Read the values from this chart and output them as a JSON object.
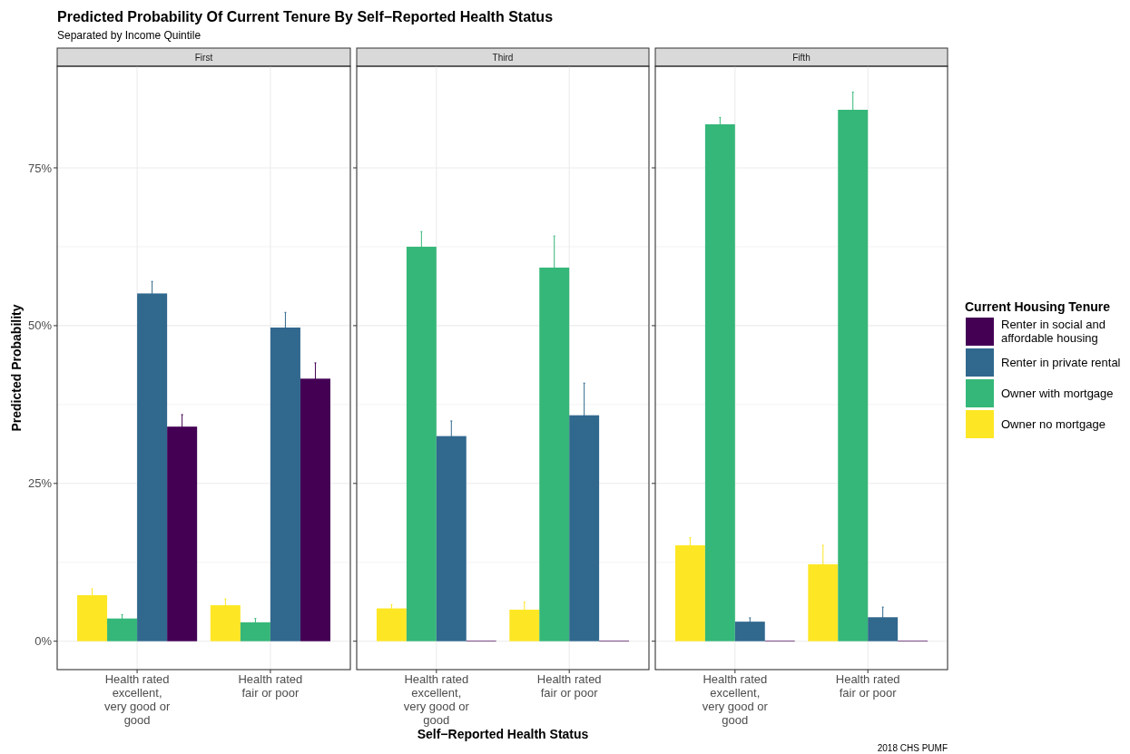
{
  "chart_data": [
    {
      "type": "bar",
      "title": "Predicted Probability Of Current Tenure By Self−Reported Health Status",
      "subtitle": "Separated by Income Quintile",
      "ylabel": "Predicted Probability",
      "annotations": [
        "First"
      ],
      "categories": [
        "Health rated excellent, very good or good",
        "Health rated fair or poor"
      ],
      "series": [
        {
          "color": "#fde725",
          "values": [
            7.3,
            5.7
          ],
          "errors": [
            1.0,
            1.0
          ]
        },
        {
          "color": "#35b779",
          "values": [
            3.6,
            3.0
          ],
          "errors": [
            0.6,
            0.6
          ]
        },
        {
          "color": "#31688e",
          "values": [
            55.1,
            49.7
          ],
          "errors": [
            1.9,
            2.4
          ]
        },
        {
          "color": "#440154",
          "values": [
            34.0,
            41.6
          ],
          "errors": [
            1.9,
            2.5
          ]
        }
      ],
      "ylim": [
        -4.5,
        91.1
      ],
      "yticks": [
        {
          "value": 0,
          "label": "0%"
        },
        {
          "value": 25,
          "label": "25%"
        },
        {
          "value": 50,
          "label": "50%"
        },
        {
          "value": 75,
          "label": "75%"
        }
      ],
      "grid": true
    },
    {
      "type": "bar",
      "xlabel": "Self−Reported Health Status",
      "annotations": [
        "Third"
      ],
      "categories": [
        "Health rated excellent, very good or good",
        "Health rated fair or poor"
      ],
      "series": [
        {
          "color": "#fde725",
          "values": [
            5.2,
            5.0
          ],
          "errors": [
            0.6,
            1.2
          ]
        },
        {
          "color": "#35b779",
          "values": [
            62.5,
            59.2
          ],
          "errors": [
            2.4,
            5.0
          ]
        },
        {
          "color": "#31688e",
          "values": [
            32.5,
            35.8
          ],
          "errors": [
            2.4,
            5.1
          ]
        },
        {
          "color": "#440154",
          "values": [
            0.1,
            0.1
          ],
          "errors": [
            null,
            null
          ]
        }
      ],
      "ylim": [
        -4.5,
        91.1
      ],
      "yticks": [
        {
          "value": 0,
          "label": null
        },
        {
          "value": 25,
          "label": null
        },
        {
          "value": 50,
          "label": null
        },
        {
          "value": 75,
          "label": null
        }
      ],
      "grid": true,
      "tick_labels": "x"
    },
    {
      "type": "bar",
      "annotations": [
        "Fifth",
        "2018 CHS PUMF"
      ],
      "legend": "right",
      "legend_title": "Current Housing Tenure",
      "categories": [
        "Health rated excellent, very good or good",
        "Health rated fair or poor"
      ],
      "series": [
        {
          "name": "Owner no mortgage",
          "color": "#fde725",
          "values": [
            15.2,
            12.2
          ],
          "errors": [
            1.2,
            3.0
          ]
        },
        {
          "name": "Owner with mortgage",
          "color": "#35b779",
          "values": [
            81.9,
            84.2
          ],
          "errors": [
            1.1,
            2.8
          ]
        },
        {
          "name": "Renter in private rental",
          "color": "#31688e",
          "values": [
            3.1,
            3.8
          ],
          "errors": [
            0.6,
            1.6
          ]
        },
        {
          "name": "Renter in social and affordable housing",
          "color": "#440154",
          "values": [
            0.1,
            0.1
          ],
          "errors": [
            null,
            null
          ]
        }
      ],
      "ylim": [
        -4.5,
        91.1
      ],
      "yticks": [
        {
          "value": 0,
          "label": null
        },
        {
          "value": 25,
          "label": null
        },
        {
          "value": 50,
          "label": null
        },
        {
          "value": 75,
          "label": null
        }
      ],
      "grid": true,
      "tick_labels": "x"
    }
  ]
}
